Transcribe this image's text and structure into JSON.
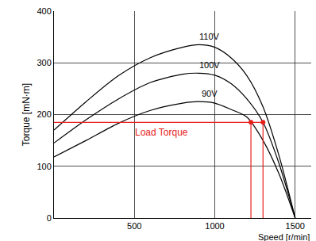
{
  "chart_data": {
    "type": "line",
    "x_label": "Speed [r/min]",
    "y_label": "Torque [mN·m]",
    "x": [
      0,
      200,
      400,
      600,
      800,
      900,
      1000,
      1100,
      1200,
      1300,
      1400,
      1500
    ],
    "series": [
      {
        "name": "110V",
        "color": "#000000",
        "values": [
          170,
          225,
          275,
          310,
          330,
          335,
          330,
          310,
          275,
          215,
          120,
          0
        ]
      },
      {
        "name": "100V",
        "color": "#000000",
        "values": [
          145,
          190,
          230,
          262,
          278,
          280,
          276,
          260,
          230,
          185,
          105,
          0
        ]
      },
      {
        "name": "90V",
        "color": "#000000",
        "values": [
          118,
          150,
          183,
          208,
          222,
          225,
          222,
          210,
          195,
          150,
          85,
          0
        ]
      }
    ],
    "load_torque": {
      "label": "Load Torque",
      "value": 185,
      "speeds": [
        1225,
        1300
      ],
      "color": "#e8201c"
    },
    "xlim": [
      0,
      1600
    ],
    "xticks": [
      500,
      1000,
      1500
    ],
    "ylim": [
      0,
      400
    ],
    "yticks": [
      0,
      100,
      200,
      300,
      400
    ],
    "grid": true
  }
}
